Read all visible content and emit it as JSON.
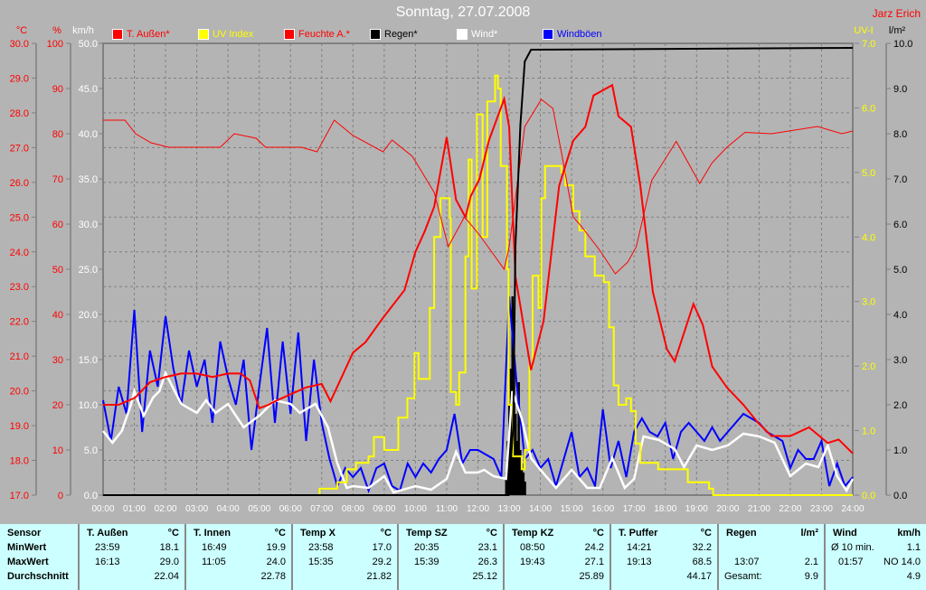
{
  "title": "Sonntag, 27.07.2008",
  "author": "Jarz Erich",
  "colors": {
    "background": "#b4b4b4",
    "temp": "#ff0000",
    "uv": "#ffff00",
    "rain": "#000000",
    "wind": "#ffffff",
    "gust": "#0000ff",
    "table": "#ccffff"
  },
  "legend": [
    {
      "label": "T. Außen*",
      "color": "#ff0000"
    },
    {
      "label": "UV Index",
      "color": "#ffff00"
    },
    {
      "label": "Feuchte A.*",
      "color": "#ff0000"
    },
    {
      "label": "Regen*",
      "color": "#000000"
    },
    {
      "label": "Wind*",
      "color": "#ffffff"
    },
    {
      "label": "Windböen",
      "color": "#0000ff"
    }
  ],
  "chart_data": {
    "type": "line",
    "title": "Sonntag, 27.07.2008",
    "grid": true,
    "x_ticks": [
      "00:00",
      "01:00",
      "02:00",
      "03:00",
      "04:00",
      "05:00",
      "06:00",
      "07:00",
      "08:00",
      "09:00",
      "10:00",
      "11:00",
      "12:00",
      "13:00",
      "14:00",
      "15:00",
      "16:00",
      "17:00",
      "18:00",
      "19:00",
      "20:00",
      "21:00",
      "22:00",
      "23:00",
      "24:00"
    ],
    "xlim_hours": [
      0,
      24
    ],
    "axes": {
      "temp": {
        "unit": "°C",
        "range": [
          17,
          30
        ],
        "ticks": [
          "17.0",
          "18.0",
          "19.0",
          "20.0",
          "21.0",
          "22.0",
          "23.0",
          "24.0",
          "25.0",
          "26.0",
          "27.0",
          "28.0",
          "29.0",
          "30.0"
        ],
        "color": "#ff0000"
      },
      "humidity": {
        "unit": "%",
        "range": [
          0,
          100
        ],
        "ticks": [
          "0",
          "10",
          "20",
          "30",
          "40",
          "50",
          "60",
          "70",
          "80",
          "90",
          "100"
        ],
        "color": "#ff0000"
      },
      "wind": {
        "unit": "km/h",
        "range": [
          0,
          50
        ],
        "ticks": [
          "0.0",
          "5.0",
          "10.0",
          "15.0",
          "20.0",
          "25.0",
          "30.0",
          "35.0",
          "40.0",
          "45.0",
          "50.0"
        ],
        "color": "#ffffff"
      },
      "uv": {
        "unit": "UV-I",
        "range": [
          0,
          7
        ],
        "ticks": [
          "0.0",
          "1.0",
          "2.0",
          "3.0",
          "4.0",
          "5.0",
          "6.0",
          "7.0"
        ],
        "color": "#ffff00"
      },
      "rain": {
        "unit": "l/m²",
        "range": [
          0,
          10
        ],
        "ticks": [
          "0.0",
          "1.0",
          "2.0",
          "3.0",
          "4.0",
          "5.0",
          "6.0",
          "7.0",
          "8.0",
          "9.0",
          "10.0"
        ],
        "color": "#000000"
      }
    },
    "series": [
      {
        "name": "T. Außen*",
        "axis": "temp",
        "color": "#ff0000",
        "width": 2,
        "x": [
          0,
          0.5,
          1.02,
          1.5,
          2,
          2.5,
          3,
          3.5,
          4,
          4.4,
          4.7,
          5,
          5.3,
          5.5,
          6,
          6.5,
          7,
          7.28,
          8,
          8.4,
          8.96,
          9.65,
          10,
          10.3,
          10.6,
          11,
          11.3,
          11.6,
          11.77,
          12.05,
          12.35,
          12.84,
          13,
          13.2,
          13.7,
          14.1,
          14.6,
          15.05,
          15.44,
          15.7,
          16.3,
          16.5,
          16.9,
          17.2,
          17.6,
          18.05,
          18.3,
          18.9,
          19.2,
          19.5,
          19.97,
          20.5,
          20.95,
          21.4,
          22,
          22.6,
          23.2,
          23.55,
          24
        ],
        "y": [
          19.6,
          19.6,
          19.8,
          20.25,
          20.4,
          20.5,
          20.5,
          20.4,
          20.5,
          20.5,
          20.3,
          19.5,
          19.6,
          19.7,
          19.9,
          20.1,
          20.2,
          19.7,
          21.1,
          21.4,
          22.1,
          22.9,
          24.0,
          24.6,
          25.3,
          27.3,
          25.5,
          25.0,
          25.6,
          26.1,
          27.2,
          28.4,
          27.6,
          23.3,
          20.6,
          22.0,
          25.9,
          27.2,
          27.6,
          28.5,
          28.8,
          27.9,
          27.6,
          25.9,
          22.85,
          21.2,
          20.85,
          22.5,
          21.9,
          20.7,
          20.1,
          19.6,
          19.1,
          18.7,
          18.7,
          18.95,
          18.5,
          18.6,
          18.2
        ]
      },
      {
        "name": "Feuchte A.*",
        "axis": "humidity",
        "color": "#ff0000",
        "width": 1,
        "x": [
          0,
          0.7,
          1.04,
          1.53,
          2.1,
          3.75,
          4.2,
          4.9,
          5.2,
          6.35,
          6.85,
          7.4,
          8,
          8.96,
          9.25,
          9.9,
          10.2,
          10.6,
          11.05,
          11.57,
          12.05,
          12.84,
          13,
          13.5,
          14.03,
          14.4,
          14.67,
          15.05,
          15.3,
          15.9,
          16.4,
          16.8,
          17.07,
          17.56,
          18.05,
          18.35,
          19.1,
          19.5,
          19.97,
          20.55,
          21.4,
          22.87,
          23.65,
          24
        ],
        "y": [
          83,
          83,
          80,
          78,
          77,
          77,
          80,
          79,
          77,
          77,
          76,
          83,
          79.6,
          76,
          78.6,
          75,
          71.6,
          67,
          55,
          61.6,
          57.6,
          50,
          55,
          81.6,
          87.6,
          85.6,
          76,
          61.6,
          59.6,
          54.2,
          49,
          51.6,
          55,
          69.6,
          75,
          78.3,
          69,
          73.6,
          77,
          80.3,
          80,
          81.6,
          80,
          80.6
        ]
      },
      {
        "name": "UV Index",
        "axis": "uv",
        "color": "#ffff00",
        "width": 2,
        "step": true,
        "x": [
          0,
          6.93,
          7.5,
          7.8,
          8.1,
          8.5,
          8.67,
          9,
          9.45,
          9.74,
          9.97,
          10.1,
          10.46,
          10.6,
          10.8,
          11.1,
          11.13,
          11.3,
          11.4,
          11.6,
          11.7,
          11.8,
          11.97,
          12.15,
          12.3,
          12.55,
          12.64,
          12.73,
          12.93,
          12.98,
          13.12,
          13.4,
          13.5,
          13.65,
          13.75,
          13.94,
          14.03,
          14.15,
          14.67,
          14.8,
          15.05,
          15.25,
          15.44,
          15.74,
          16.03,
          16.2,
          16.35,
          16.5,
          16.75,
          16.9,
          17.05,
          17.2,
          17.77,
          18.35,
          18.72,
          19.4,
          19.53,
          24
        ],
        "y": [
          0,
          0.1,
          0.2,
          0.4,
          0.5,
          0.6,
          0.9,
          0.7,
          1.2,
          1.5,
          2.2,
          1.8,
          2.9,
          4.0,
          4.6,
          4.3,
          1.6,
          1.4,
          1.9,
          3.7,
          5.2,
          3.2,
          5.9,
          4.0,
          6.1,
          6.5,
          6.3,
          5.1,
          3.5,
          1.4,
          0.6,
          0.4,
          0.7,
          2.0,
          3.4,
          2.9,
          4.6,
          5.1,
          5.0,
          4.8,
          4.4,
          4.1,
          3.7,
          3.4,
          3.3,
          2.6,
          1.7,
          1.4,
          1.5,
          1.3,
          0.8,
          0.5,
          0.4,
          0.4,
          0.2,
          0.1,
          0,
          0
        ]
      },
      {
        "name": "Regen*",
        "axis": "rain",
        "color": "#000000",
        "width": 2,
        "x": [
          0,
          12.98,
          13.13,
          13.2,
          13.36,
          13.5,
          13.7,
          24
        ],
        "y": [
          0,
          0,
          1.5,
          5.5,
          8.2,
          9.6,
          9.86,
          9.9
        ]
      },
      {
        "name": "Windböen",
        "axis": "wind",
        "color": "#0000ff",
        "width": 2,
        "interval_hours": 0.25,
        "y": [
          10.5,
          6,
          12,
          9,
          20.5,
          7,
          16,
          12,
          19.8,
          14,
          10,
          16,
          12,
          15,
          8,
          17,
          13,
          10,
          15,
          5,
          12,
          18.5,
          8,
          17,
          9,
          18,
          6,
          15,
          8,
          4,
          1,
          3,
          2,
          3,
          0.5,
          3,
          3.5,
          1,
          0.5,
          3.5,
          2,
          3.5,
          2.5,
          4,
          5,
          9,
          3.5,
          5,
          5,
          4.5,
          4,
          2,
          22,
          12,
          4,
          5,
          3,
          4,
          1,
          4,
          7,
          2,
          3,
          1,
          9.5,
          3,
          6,
          2,
          7,
          8.5,
          7,
          6.5,
          8,
          4,
          7,
          8,
          7,
          6,
          7.5,
          6,
          7,
          8,
          9,
          8.5,
          8,
          7,
          6.5,
          6,
          3,
          5,
          4,
          4,
          6,
          1,
          3.5,
          1,
          2
        ]
      },
      {
        "name": "Wind*",
        "axis": "wind",
        "color": "#ffffff",
        "width": 2.5,
        "x": [
          0,
          0.3,
          0.6,
          0.9,
          1.0,
          1.3,
          1.6,
          1.8,
          2.0,
          2.5,
          3.0,
          3.3,
          3.6,
          4.0,
          4.5,
          5.0,
          5.5,
          6.0,
          6.3,
          6.8,
          7.2,
          7.5,
          7.8,
          8,
          8.5,
          9,
          9.3,
          10,
          10.5,
          11,
          11.3,
          11.6,
          12,
          12.2,
          12.5,
          12.9,
          13.1,
          13.4,
          13.7,
          14,
          14.5,
          15,
          15.5,
          15.9,
          16.3,
          16.7,
          17,
          17.3,
          17.8,
          18.3,
          18.6,
          19,
          19.5,
          20,
          20.5,
          21,
          21.5,
          22,
          22.5,
          22.9,
          23.2,
          23.5,
          23.8,
          24
        ],
        "y": [
          7.1,
          5.8,
          7.1,
          10.1,
          11.5,
          8.8,
          10.8,
          11.5,
          13.5,
          10.1,
          9.1,
          10.5,
          9.1,
          10.1,
          7.5,
          8.8,
          10.5,
          10.1,
          9.1,
          10.1,
          7.5,
          3.5,
          0.8,
          1.0,
          0.8,
          2.1,
          0.3,
          1.0,
          0.6,
          1.8,
          4.8,
          2.5,
          2.5,
          2.8,
          2.1,
          1.8,
          11.5,
          8.5,
          4.1,
          2.8,
          0.8,
          2.8,
          0.8,
          0.8,
          4.1,
          0.8,
          1.8,
          6.5,
          6.1,
          5.1,
          3.1,
          5.5,
          5.0,
          5.5,
          6.8,
          6.5,
          5.8,
          2.1,
          3.5,
          3.1,
          5.5,
          2.1,
          0.5,
          1.8
        ]
      }
    ],
    "rain_bars": {
      "axis": "rain",
      "x": [
        12.9,
        12.95,
        13.0,
        13.05,
        13.1,
        13.15,
        13.2,
        13.25,
        13.3,
        13.35,
        13.4,
        13.45,
        13.5
      ],
      "y": [
        0.5,
        1.2,
        2.0,
        2.8,
        4.4,
        3.0,
        1.8,
        1.2,
        2.5,
        1.0,
        0.7,
        0.5,
        0.3
      ]
    }
  },
  "stats": {
    "headers": [
      {
        "name": "Sensor",
        "unit": ""
      },
      {
        "name": "T. Außen",
        "unit": "°C"
      },
      {
        "name": "T. Innen",
        "unit": "°C"
      },
      {
        "name": "Temp X",
        "unit": "°C"
      },
      {
        "name": "Temp SZ",
        "unit": "°C"
      },
      {
        "name": "Temp KZ",
        "unit": "°C"
      },
      {
        "name": "T. Puffer",
        "unit": "°C"
      },
      {
        "name": "Regen",
        "unit": "l/m²"
      },
      {
        "name": "Wind",
        "unit": "km/h"
      }
    ],
    "row_labels": [
      "MinWert",
      "MaxWert",
      "Durchschnitt"
    ],
    "columns": [
      {
        "min_time": "23:59",
        "min": "18.1",
        "max_time": "16:13",
        "max": "29.0",
        "avg_label": "",
        "avg": "22.04"
      },
      {
        "min_time": "16:49",
        "min": "19.9",
        "max_time": "11:05",
        "max": "24.0",
        "avg_label": "",
        "avg": "22.78"
      },
      {
        "min_time": "23:58",
        "min": "17.0",
        "max_time": "15:35",
        "max": "29.2",
        "avg_label": "",
        "avg": "21.82"
      },
      {
        "min_time": "20:35",
        "min": "23.1",
        "max_time": "15:39",
        "max": "26.3",
        "avg_label": "",
        "avg": "25.12"
      },
      {
        "min_time": "08:50",
        "min": "24.2",
        "max_time": "19:43",
        "max": "27.1",
        "avg_label": "",
        "avg": "25.89"
      },
      {
        "min_time": "14:21",
        "min": "32.2",
        "max_time": "19:13",
        "max": "68.5",
        "avg_label": "",
        "avg": "44.17"
      },
      {
        "min_time": "",
        "min": "",
        "max_time": "13:07",
        "max": "2.1",
        "avg_label": "Gesamt:",
        "avg": "9.9"
      },
      {
        "min_time": "Ø 10 min.",
        "min": "1.1",
        "max_time": "01:57",
        "max": "NO 14.0",
        "avg_label": "",
        "avg": "4.9"
      }
    ]
  }
}
